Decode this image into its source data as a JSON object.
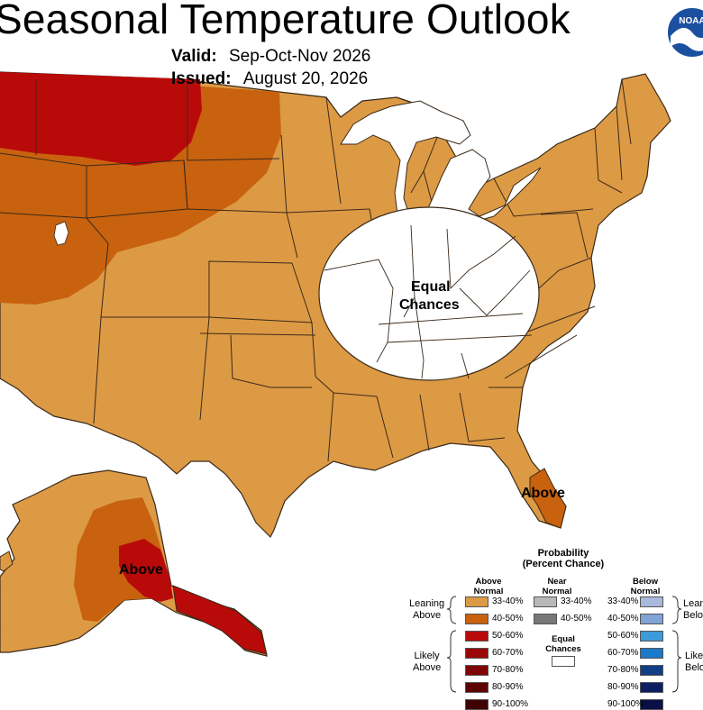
{
  "title": "Seasonal Temperature Outlook",
  "valid_label": "Valid:",
  "valid_value": "Sep-Oct-Nov 2026",
  "issued_label": "Issued:",
  "issued_value": "August 20, 2026",
  "logo_text": "NOAA",
  "map_labels": {
    "equal_chances_line1": "Equal",
    "equal_chances_line2": "Chances",
    "florida_above": "Above",
    "alaska_above": "Above"
  },
  "legend": {
    "title_line1": "Probability",
    "title_line2": "(Percent Chance)",
    "above_head_1": "Above",
    "above_head_2": "Normal",
    "near_head_1": "Near",
    "near_head_2": "Normal",
    "below_head_1": "Below",
    "below_head_2": "Normal",
    "leaning_1": "Leaning",
    "leaning_2": "Above",
    "likely_1": "Likely",
    "likely_2": "Above",
    "leaning_below_1": "Lean",
    "leaning_below_2": "Belo",
    "likely_below_1": "Like",
    "likely_below_2": "Belo",
    "equal_1": "Equal",
    "equal_2": "Chances",
    "above_ranges": [
      "33-40%",
      "40-50%",
      "50-60%",
      "60-70%",
      "70-80%",
      "80-90%",
      "90-100%"
    ],
    "near_ranges": [
      "33-40%",
      "40-50%"
    ],
    "below_ranges": [
      "33-40%",
      "40-50%",
      "50-60%",
      "60-70%",
      "70-80%",
      "80-90%",
      "90-100%"
    ],
    "above_colors": [
      "#dd9a44",
      "#c8620f",
      "#b90a0a",
      "#9a0707",
      "#7e0505",
      "#5e0303",
      "#3f0202"
    ],
    "near_colors": [
      "#b8b8b8",
      "#787878"
    ],
    "below_colors": [
      "#a9b8dd",
      "#7fa4d5",
      "#3d9ad8",
      "#1a79c8",
      "#123e86",
      "#0c1f63",
      "#0a0f45"
    ]
  },
  "colors": {
    "above_33_40": "#dd9a44",
    "above_40_50": "#c8620f",
    "above_50_60": "#b90a0a",
    "equal_chances": "#ffffff",
    "state_lines": "#3a2a1a"
  }
}
